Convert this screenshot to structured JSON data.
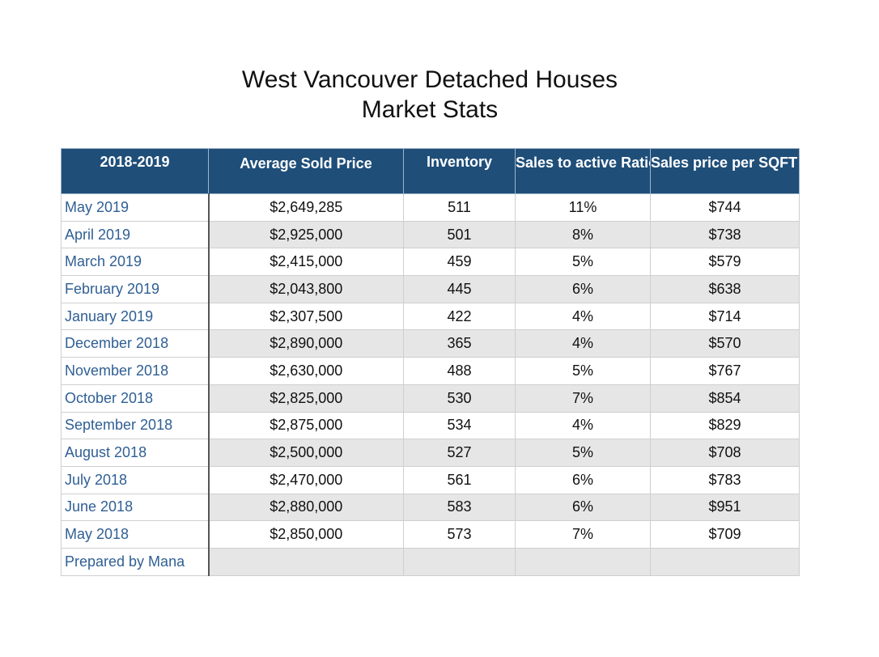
{
  "title": {
    "line1": "West Vancouver Detached Houses",
    "line2": "Market Stats"
  },
  "table": {
    "headers": [
      "2018-2019",
      "Average Sold Price",
      "Inventory",
      "Sales to active Ratio",
      "Sales price per SQFT"
    ],
    "rows": [
      [
        "May 2019",
        "$2,649,285",
        "511",
        "11%",
        "$744"
      ],
      [
        "April 2019",
        "$2,925,000",
        "501",
        "8%",
        "$738"
      ],
      [
        "March 2019",
        "$2,415,000",
        "459",
        "5%",
        "$579"
      ],
      [
        "February 2019",
        "$2,043,800",
        "445",
        "6%",
        "$638"
      ],
      [
        "January 2019",
        "$2,307,500",
        "422",
        "4%",
        "$714"
      ],
      [
        "December 2018",
        "$2,890,000",
        "365",
        "4%",
        "$570"
      ],
      [
        "November 2018",
        "$2,630,000",
        "488",
        "5%",
        "$767"
      ],
      [
        "October 2018",
        "$2,825,000",
        "530",
        "7%",
        "$854"
      ],
      [
        "September 2018",
        "$2,875,000",
        "534",
        "4%",
        "$829"
      ],
      [
        "August 2018",
        "$2,500,000",
        "527",
        "5%",
        "$708"
      ],
      [
        "July 2018",
        "$2,470,000",
        "561",
        "6%",
        "$783"
      ],
      [
        "June 2018",
        "$2,880,000",
        "583",
        "6%",
        "$951"
      ],
      [
        "May 2018",
        "$2,850,000",
        "573",
        "7%",
        "$709"
      ]
    ],
    "footer": "Prepared by Mana"
  },
  "colors": {
    "header_background": "#1f4e79",
    "header_text": "#ffffff",
    "month_text": "#2f5f94",
    "alternate_row": "#e6e6e6"
  }
}
